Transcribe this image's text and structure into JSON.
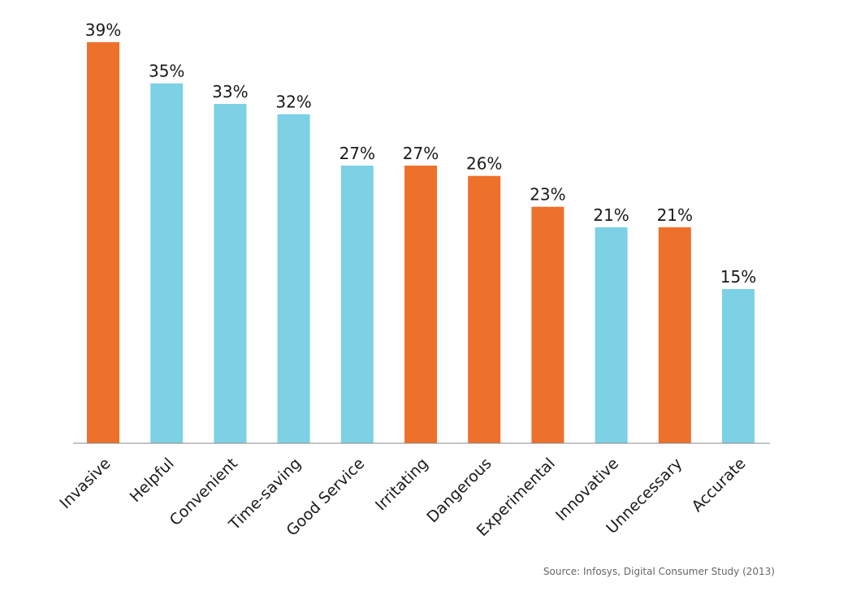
{
  "chart_data": {
    "type": "bar",
    "categories": [
      "Invasive",
      "Helpful",
      "Convenient",
      "Time-saving",
      "Good Service",
      "Irritating",
      "Dangerous",
      "Experimental",
      "Innovative",
      "Unnecessary",
      "Accurate"
    ],
    "values": [
      39,
      35,
      33,
      32,
      27,
      27,
      26,
      23,
      21,
      21,
      15
    ],
    "value_labels": [
      "39%",
      "35%",
      "33%",
      "32%",
      "27%",
      "27%",
      "26%",
      "23%",
      "21%",
      "21%",
      "15%"
    ],
    "bar_sentiment": [
      "negative",
      "positive",
      "positive",
      "positive",
      "positive",
      "negative",
      "negative",
      "negative",
      "positive",
      "negative",
      "positive"
    ],
    "colors": {
      "negative": "#ed702b",
      "positive": "#7dd1e4",
      "axis": "#888888"
    },
    "ylim": [
      0,
      39
    ],
    "grid": false,
    "title": "",
    "xlabel": "",
    "ylabel": ""
  },
  "source": "Source: Infosys, Digital Consumer Study (2013)"
}
